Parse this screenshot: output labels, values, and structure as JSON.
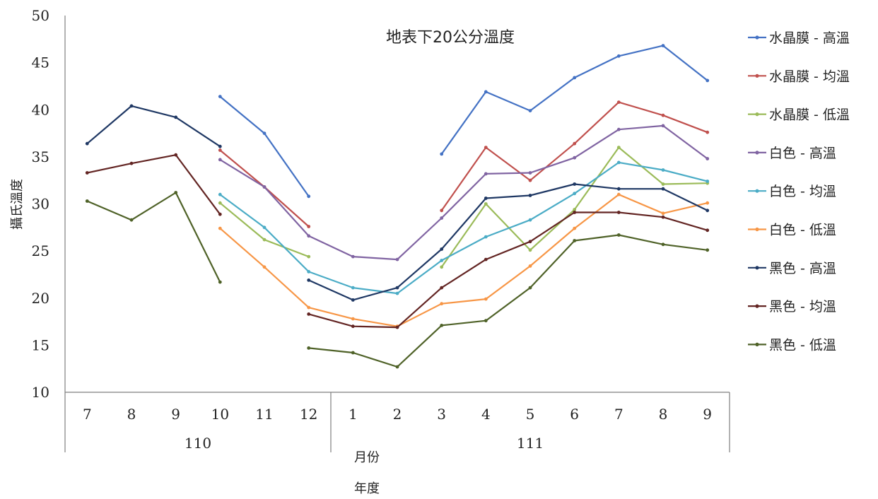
{
  "chart_data": {
    "type": "line",
    "title": "地表下20公分溫度",
    "ylabel": "攝氏溫度",
    "xlabel_month": "月份",
    "xlabel_year": "年度",
    "ylim": [
      10,
      50
    ],
    "yticks": [
      "10",
      "15",
      "20",
      "25",
      "30",
      "35",
      "40",
      "45",
      "50"
    ],
    "categories": [
      "7",
      "8",
      "9",
      "10",
      "11",
      "12",
      "1",
      "2",
      "3",
      "4",
      "5",
      "6",
      "7",
      "8",
      "9"
    ],
    "years": [
      {
        "label": "110",
        "count": 6
      },
      {
        "label": "111",
        "count": 9
      }
    ],
    "grid": false,
    "legend_position": "right",
    "series": [
      {
        "name": "水晶膜 - 高溫",
        "color": "#4472C4",
        "values": [
          null,
          null,
          null,
          41.4,
          37.5,
          30.8,
          null,
          null,
          35.3,
          41.9,
          39.9,
          43.4,
          45.7,
          46.8,
          43.1
        ]
      },
      {
        "name": "水晶膜 - 均溫",
        "color": "#C0504D",
        "values": [
          null,
          null,
          null,
          35.7,
          31.8,
          27.6,
          null,
          null,
          29.3,
          36.0,
          32.5,
          36.4,
          40.8,
          39.4,
          37.6
        ]
      },
      {
        "name": "水晶膜 - 低溫",
        "color": "#9BBB59",
        "values": [
          null,
          null,
          null,
          30.1,
          26.2,
          24.4,
          null,
          null,
          23.3,
          30.0,
          25.1,
          29.4,
          36.0,
          32.1,
          32.2
        ]
      },
      {
        "name": "白色 - 高溫",
        "color": "#8064A2",
        "values": [
          null,
          null,
          null,
          34.7,
          31.8,
          26.6,
          24.4,
          24.1,
          28.5,
          33.2,
          33.3,
          34.9,
          37.9,
          38.3,
          34.8
        ]
      },
      {
        "name": "白色 - 均溫",
        "color": "#4BACC6",
        "values": [
          null,
          null,
          null,
          31.0,
          27.5,
          22.8,
          21.1,
          20.5,
          24.0,
          26.5,
          28.3,
          31.1,
          34.4,
          33.6,
          32.4
        ]
      },
      {
        "name": "白色 - 低溫",
        "color": "#F79646",
        "values": [
          null,
          null,
          null,
          27.4,
          23.3,
          19.0,
          17.8,
          17.0,
          19.4,
          19.9,
          23.4,
          27.4,
          31.0,
          29.0,
          30.1
        ]
      },
      {
        "name": "黑色 - 高溫",
        "color": "#1F3864",
        "values": [
          36.4,
          40.4,
          39.2,
          36.1,
          null,
          21.9,
          19.8,
          21.1,
          25.2,
          30.6,
          30.9,
          32.1,
          31.6,
          31.6,
          29.3
        ]
      },
      {
        "name": "黑色 - 均溫",
        "color": "#632523",
        "values": [
          33.3,
          34.3,
          35.2,
          28.9,
          null,
          18.3,
          17.0,
          16.9,
          21.1,
          24.1,
          26.0,
          29.1,
          29.1,
          28.6,
          27.2
        ]
      },
      {
        "name": "黑色 - 低溫",
        "color": "#4F6228",
        "values": [
          30.3,
          28.3,
          31.2,
          21.7,
          null,
          14.7,
          14.2,
          12.7,
          17.1,
          17.6,
          21.1,
          26.1,
          26.7,
          25.7,
          25.1
        ]
      }
    ]
  }
}
